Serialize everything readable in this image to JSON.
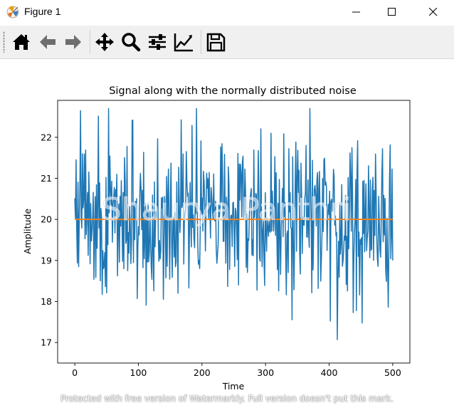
{
  "window": {
    "title": "Figure 1",
    "controls": [
      "minimize",
      "maximize",
      "close"
    ]
  },
  "toolbar": {
    "tools": [
      {
        "name": "home",
        "icon": "home-icon"
      },
      {
        "name": "back",
        "icon": "arrow-left-icon"
      },
      {
        "name": "forward",
        "icon": "arrow-right-icon"
      },
      {
        "name": "pan",
        "icon": "move-icon"
      },
      {
        "name": "zoom",
        "icon": "magnifier-icon"
      },
      {
        "name": "subplots",
        "icon": "sliders-icon"
      },
      {
        "name": "edit-axes",
        "icon": "line-chart-icon"
      },
      {
        "name": "save",
        "icon": "floppy-disk-icon"
      }
    ]
  },
  "watermarks": {
    "center": "Shaurya Panthri",
    "bottom": "Protected with free version of Watermarkly. Full version doesn't put this mark."
  },
  "chart_data": {
    "type": "line",
    "title": "Signal along with the normally distributed noise",
    "xlabel": "Time",
    "ylabel": "Amplitude",
    "xlim": [
      -27,
      527
    ],
    "ylim": [
      16.5,
      22.9
    ],
    "xticks": [
      0,
      100,
      200,
      300,
      400,
      500
    ],
    "yticks": [
      17,
      18,
      19,
      20,
      21,
      22
    ],
    "grid": false,
    "series": [
      {
        "name": "",
        "color": "#1f77b4",
        "noise": {
          "count": 500,
          "mean": 20,
          "std": 1,
          "x_start": 0,
          "x_end": 500
        }
      },
      {
        "name": "",
        "color": "#ff7f0e",
        "x": [
          0,
          500
        ],
        "values": [
          20,
          20
        ]
      }
    ]
  }
}
